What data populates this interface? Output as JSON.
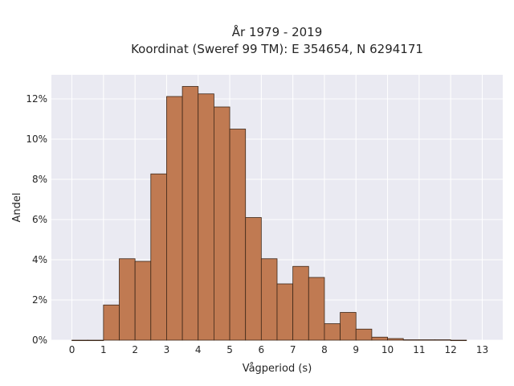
{
  "chart_data": {
    "type": "bar",
    "title_line1": "År 1979 - 2019",
    "title_line2": "Koordinat (Sweref 99 TM): E 354654, N 6294171",
    "xlabel": "Vågperiod (s)",
    "ylabel": "Andel",
    "bin_width": 0.5,
    "bin_starts": [
      0,
      0.5,
      1,
      1.5,
      2,
      2.5,
      3,
      3.5,
      4,
      4.5,
      5,
      5.5,
      6,
      6.5,
      7,
      7.5,
      8,
      8.5,
      9,
      9.5,
      10,
      10.5,
      11,
      11.5,
      12
    ],
    "values": [
      0.0,
      0.0,
      1.75,
      4.05,
      3.92,
      8.27,
      12.12,
      12.62,
      12.25,
      11.6,
      10.5,
      6.1,
      4.05,
      2.8,
      3.67,
      3.12,
      0.82,
      1.38,
      0.55,
      0.15,
      0.08,
      0.02,
      0.02,
      0.02,
      0.0
    ],
    "xlim": [
      -0.65,
      13.65
    ],
    "ylim": [
      0,
      13.2
    ],
    "x_ticks": [
      0,
      1,
      2,
      3,
      4,
      5,
      6,
      7,
      8,
      9,
      10,
      11,
      12,
      13
    ],
    "x_tick_labels": [
      "0",
      "1",
      "2",
      "3",
      "4",
      "5",
      "6",
      "7",
      "8",
      "9",
      "10",
      "11",
      "12",
      "13"
    ],
    "y_ticks": [
      0,
      2,
      4,
      6,
      8,
      10,
      12
    ],
    "y_tick_labels": [
      "0%",
      "2%",
      "4%",
      "6%",
      "8%",
      "10%",
      "12%"
    ],
    "grid": true,
    "colors": {
      "bar_fill": "#c07a52",
      "bar_edge": "#3d2718",
      "plot_background": "#eaeaf2",
      "grid": "#ffffff"
    }
  }
}
